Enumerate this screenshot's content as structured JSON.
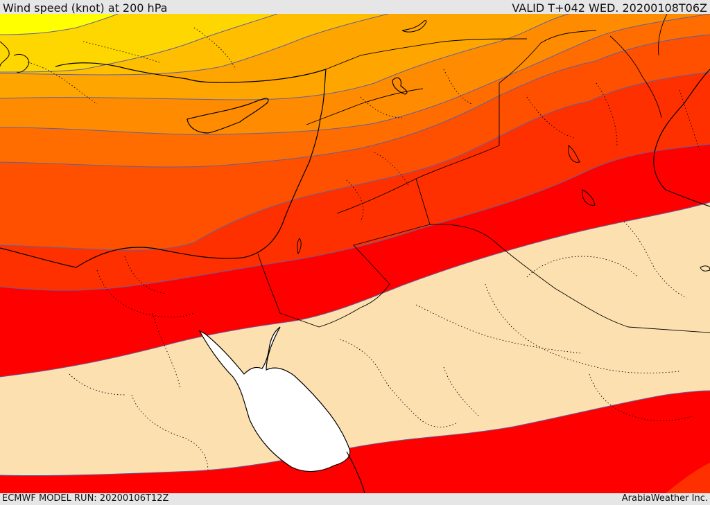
{
  "header": {
    "title": "Wind speed (knot) at 200 hPa",
    "valid": "VALID T+042 WED. 20200108T06Z"
  },
  "footer": {
    "model_run": "ECMWF MODEL RUN: 20200106T12Z",
    "credit": "ArabiaWeather Inc."
  },
  "map": {
    "variable": "wind speed",
    "level": "200 hPa",
    "palette": {
      "band_1": "#ffff00",
      "band_2": "#ffd700",
      "band_3": "#ffbf00",
      "band_4": "#ffa500",
      "band_5": "#ff8c00",
      "band_6": "#ff6d00",
      "band_7": "#ff5000",
      "band_8": "#ff3000",
      "band_9": "#ff0000",
      "below_threshold": "#fde0b0",
      "sea_mask": "#ffffff",
      "contour": "#6060a0",
      "coastline": "#000000",
      "border": "#000000"
    }
  }
}
